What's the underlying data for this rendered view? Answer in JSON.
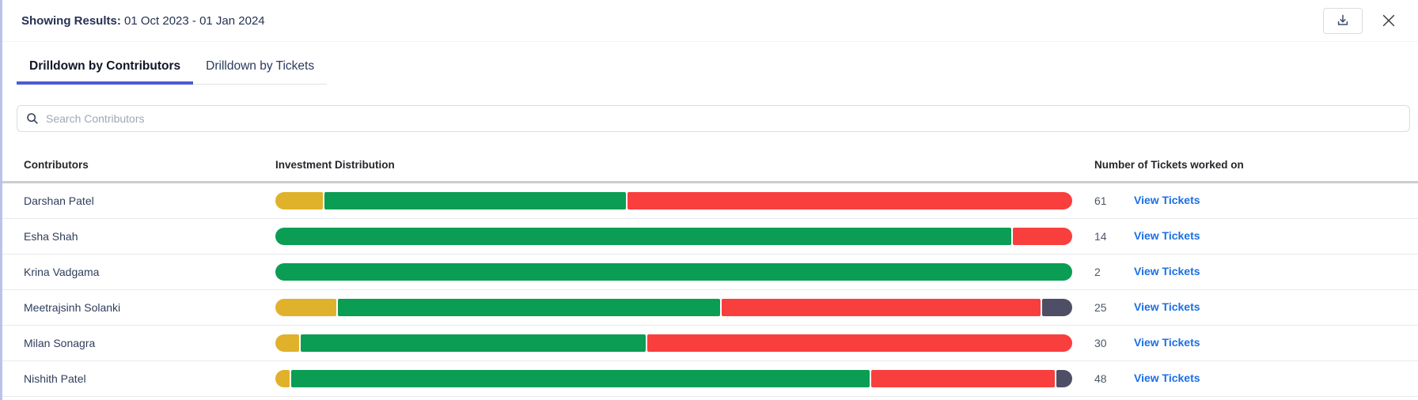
{
  "header": {
    "label": "Showing Results:",
    "date_range": "01 Oct 2023 - 01 Jan 2024"
  },
  "actions": {
    "download_icon": "download-tray-arrow",
    "close_icon": "x-cross"
  },
  "tabs": [
    {
      "label": "Drilldown by Contributors",
      "active": true
    },
    {
      "label": "Drilldown by Tickets",
      "active": false
    }
  ],
  "search": {
    "placeholder": "Search Contributors",
    "icon": "magnifier"
  },
  "table": {
    "columns": [
      "Contributors",
      "Investment Distribution",
      "Number of Tickets worked on"
    ],
    "rows": [
      {
        "name": "Darshan Patel",
        "tickets": "61",
        "link_label": "View Tickets",
        "segments": [
          {
            "status": "yellow",
            "pct": 6.0
          },
          {
            "status": "green",
            "pct": 38.0
          },
          {
            "status": "red",
            "pct": 56.0
          }
        ]
      },
      {
        "name": "Esha Shah",
        "tickets": "14",
        "link_label": "View Tickets",
        "segments": [
          {
            "status": "green",
            "pct": 92.5
          },
          {
            "status": "red",
            "pct": 7.5
          }
        ]
      },
      {
        "name": "Krina Vadgama",
        "tickets": "2",
        "link_label": "View Tickets",
        "segments": [
          {
            "status": "green",
            "pct": 100.0
          }
        ]
      },
      {
        "name": "Meetrajsinh Solanki",
        "tickets": "25",
        "link_label": "View Tickets",
        "segments": [
          {
            "status": "yellow",
            "pct": 7.7
          },
          {
            "status": "green",
            "pct": 48.2
          },
          {
            "status": "red",
            "pct": 40.3
          },
          {
            "status": "slate",
            "pct": 3.8
          }
        ]
      },
      {
        "name": "Milan Sonagra",
        "tickets": "30",
        "link_label": "View Tickets",
        "segments": [
          {
            "status": "yellow",
            "pct": 3.0
          },
          {
            "status": "green",
            "pct": 43.5
          },
          {
            "status": "red",
            "pct": 53.5
          }
        ]
      },
      {
        "name": "Nishith Patel",
        "tickets": "48",
        "link_label": "View Tickets",
        "segments": [
          {
            "status": "yellow",
            "pct": 1.8
          },
          {
            "status": "green",
            "pct": 73.0
          },
          {
            "status": "red",
            "pct": 23.2
          },
          {
            "status": "slate",
            "pct": 2.0
          }
        ]
      }
    ]
  },
  "colors": {
    "yellow": "#e0b22b",
    "green": "#0a9d53",
    "red": "#f93e3e",
    "slate": "#4e4e66",
    "link_blue": "#1b6fe4",
    "tab_underline": "#4a5cd2"
  }
}
